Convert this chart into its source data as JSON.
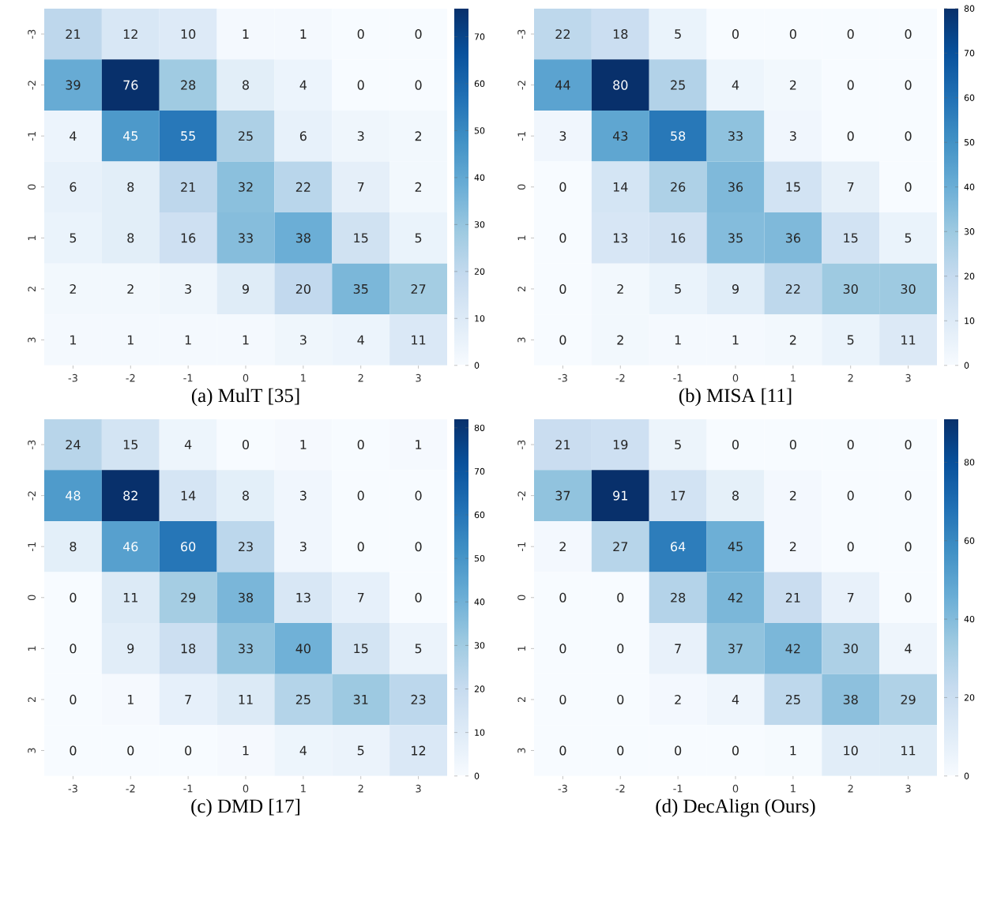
{
  "chart_data": [
    {
      "type": "heatmap",
      "title": "(a) MulT [35]",
      "categories": [
        "-3",
        "-2",
        "-1",
        "0",
        "1",
        "2",
        "3"
      ],
      "y_categories": [
        "-3",
        "-2",
        "-1",
        "0",
        "1",
        "2",
        "3"
      ],
      "data_labels": true,
      "clim": [
        0,
        76
      ],
      "cticks": [
        0,
        10,
        20,
        30,
        40,
        50,
        60,
        70
      ],
      "cells": [
        [
          21,
          12,
          10,
          1,
          1,
          0,
          0
        ],
        [
          39,
          76,
          28,
          8,
          4,
          0,
          0
        ],
        [
          4,
          45,
          55,
          25,
          6,
          3,
          2
        ],
        [
          6,
          8,
          21,
          32,
          22,
          7,
          2
        ],
        [
          5,
          8,
          16,
          33,
          38,
          15,
          5
        ],
        [
          2,
          2,
          3,
          9,
          20,
          35,
          27
        ],
        [
          1,
          1,
          1,
          1,
          3,
          4,
          11
        ]
      ]
    },
    {
      "type": "heatmap",
      "title": "(b) MISA [11]",
      "categories": [
        "-3",
        "-2",
        "-1",
        "0",
        "1",
        "2",
        "3"
      ],
      "y_categories": [
        "-3",
        "-2",
        "-1",
        "0",
        "1",
        "2",
        "3"
      ],
      "data_labels": true,
      "clim": [
        0,
        80
      ],
      "cticks": [
        0,
        10,
        20,
        30,
        40,
        50,
        60,
        70,
        80
      ],
      "cells": [
        [
          22,
          18,
          5,
          0,
          0,
          0,
          0
        ],
        [
          44,
          80,
          25,
          4,
          2,
          0,
          0
        ],
        [
          3,
          43,
          58,
          33,
          3,
          0,
          0
        ],
        [
          0,
          14,
          26,
          36,
          15,
          7,
          0
        ],
        [
          0,
          13,
          16,
          35,
          36,
          15,
          5
        ],
        [
          0,
          2,
          5,
          9,
          22,
          30,
          30
        ],
        [
          0,
          2,
          1,
          1,
          2,
          5,
          11
        ]
      ]
    },
    {
      "type": "heatmap",
      "title": "(c) DMD [17]",
      "categories": [
        "-3",
        "-2",
        "-1",
        "0",
        "1",
        "2",
        "3"
      ],
      "y_categories": [
        "-3",
        "-2",
        "-1",
        "0",
        "1",
        "2",
        "3"
      ],
      "data_labels": true,
      "clim": [
        0,
        82
      ],
      "cticks": [
        0,
        10,
        20,
        30,
        40,
        50,
        60,
        70,
        80
      ],
      "cells": [
        [
          24,
          15,
          4,
          0,
          1,
          0,
          1
        ],
        [
          48,
          82,
          14,
          8,
          3,
          0,
          0
        ],
        [
          8,
          46,
          60,
          23,
          3,
          0,
          0
        ],
        [
          0,
          11,
          29,
          38,
          13,
          7,
          0
        ],
        [
          0,
          9,
          18,
          33,
          40,
          15,
          5
        ],
        [
          0,
          1,
          7,
          11,
          25,
          31,
          23
        ],
        [
          0,
          0,
          0,
          1,
          4,
          5,
          12
        ]
      ]
    },
    {
      "type": "heatmap",
      "title": "(d) DecAlign (Ours)",
      "categories": [
        "-3",
        "-2",
        "-1",
        "0",
        "1",
        "2",
        "3"
      ],
      "y_categories": [
        "-3",
        "-2",
        "-1",
        "0",
        "1",
        "2",
        "3"
      ],
      "data_labels": true,
      "clim": [
        0,
        91
      ],
      "cticks": [
        0,
        20,
        40,
        60,
        80
      ],
      "cells": [
        [
          21,
          19,
          5,
          0,
          0,
          0,
          0
        ],
        [
          37,
          91,
          17,
          8,
          2,
          0,
          0
        ],
        [
          2,
          27,
          64,
          45,
          2,
          0,
          0
        ],
        [
          0,
          0,
          28,
          42,
          21,
          7,
          0
        ],
        [
          0,
          0,
          7,
          37,
          42,
          30,
          4
        ],
        [
          0,
          0,
          2,
          4,
          25,
          38,
          29
        ],
        [
          0,
          0,
          0,
          0,
          1,
          10,
          11
        ]
      ]
    }
  ]
}
